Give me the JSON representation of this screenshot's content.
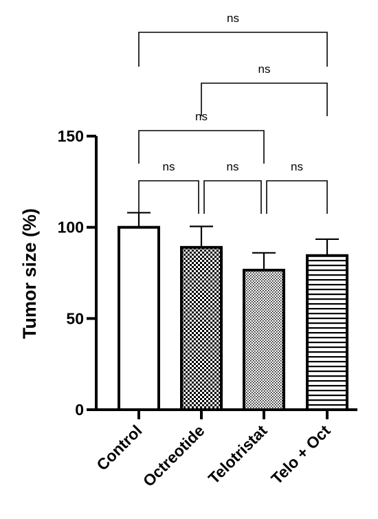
{
  "chart_data": {
    "type": "bar",
    "ylabel": "Tumor size (%)",
    "xlabel": "",
    "ylim": [
      0,
      150
    ],
    "yticks": [
      0,
      50,
      100,
      150
    ],
    "categories": [
      "Control",
      "Octreotide",
      "Telotristat",
      "Telo + Oct"
    ],
    "values": [
      100,
      89,
      76.5,
      84.5
    ],
    "errors": [
      8,
      11.5,
      9.5,
      9
    ],
    "patterns": [
      "none",
      "checker",
      "dots",
      "hlines"
    ],
    "comparisons": [
      {
        "from": 0,
        "to": 1,
        "label": "ns"
      },
      {
        "from": 1,
        "to": 2,
        "label": "ns"
      },
      {
        "from": 2,
        "to": 3,
        "label": "ns"
      },
      {
        "from": 0,
        "to": 2,
        "label": "ns"
      },
      {
        "from": 1,
        "to": 3,
        "label": "ns"
      },
      {
        "from": 0,
        "to": 3,
        "label": "ns"
      }
    ],
    "colors": {
      "bar_stroke": "#000000",
      "bar_fill": "#ffffff",
      "pattern": "#000000"
    }
  }
}
